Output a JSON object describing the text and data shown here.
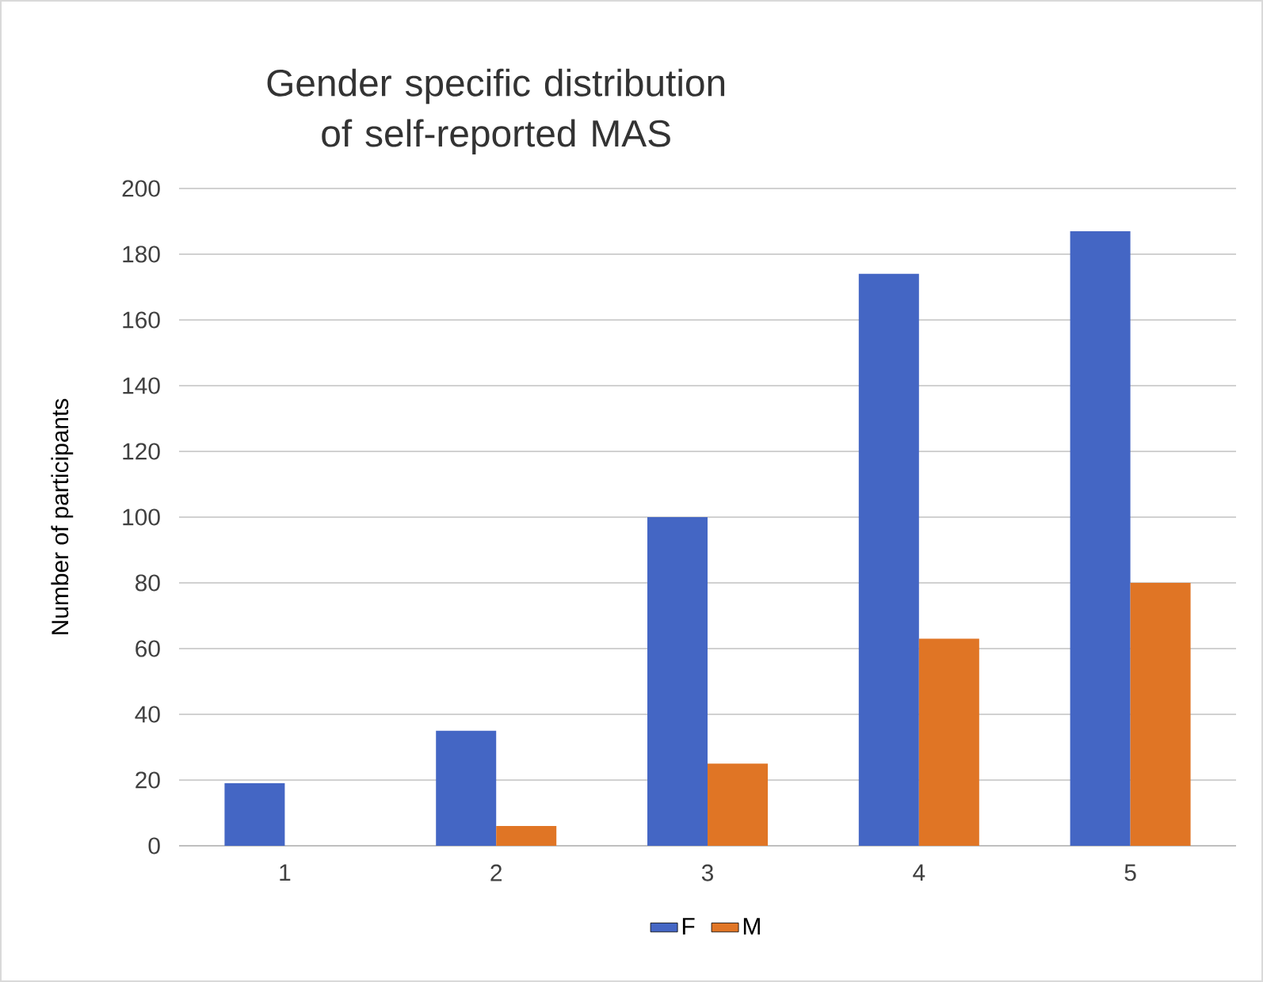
{
  "chart_data": {
    "type": "bar",
    "title": "Gender specific distribution of self-reported MAS",
    "ylabel": "Number  of participants",
    "categories": [
      "1",
      "2",
      "3",
      "4",
      "5"
    ],
    "series": [
      {
        "name": "F",
        "color": "#4466c4",
        "values": [
          19,
          35,
          100,
          174,
          187
        ]
      },
      {
        "name": "M",
        "color": "#e07525",
        "values": [
          null,
          6,
          25,
          63,
          80
        ]
      }
    ],
    "ylim": [
      0,
      200
    ],
    "yticks": [
      0,
      20,
      40,
      60,
      80,
      100,
      120,
      140,
      160,
      180,
      200
    ],
    "grid": "y",
    "legend": "bottom"
  }
}
